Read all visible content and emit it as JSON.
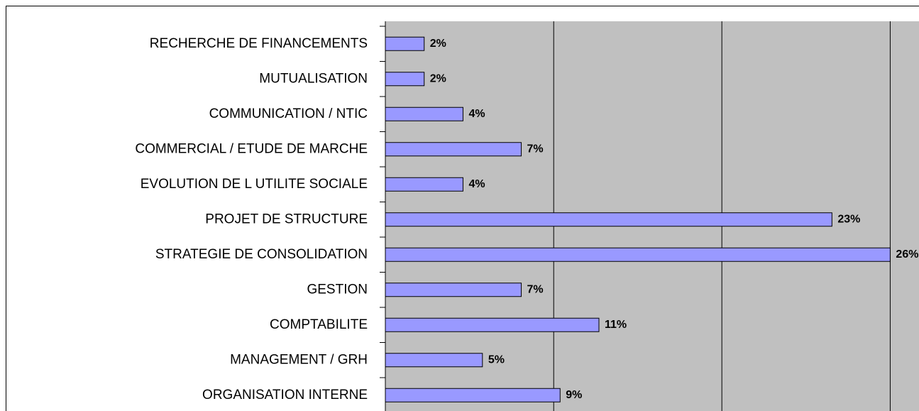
{
  "chart_data": {
    "type": "barh",
    "categories": [
      "RECHERCHE DE FINANCEMENTS",
      "MUTUALISATION",
      "COMMUNICATION / NTIC",
      "COMMERCIAL / ETUDE DE MARCHE",
      "EVOLUTION DE L UTILITE SOCIALE",
      "PROJET DE STRUCTURE",
      "STRATEGIE DE CONSOLIDATION",
      "GESTION ",
      "COMPTABILITE",
      "MANAGEMENT / GRH",
      "ORGANISATION INTERNE"
    ],
    "values": [
      2,
      2,
      4,
      7,
      4,
      23,
      26,
      7,
      11,
      5,
      9
    ],
    "value_labels": [
      "2%",
      "2%",
      "4%",
      "7%",
      "4%",
      "23%",
      "26%",
      "7%",
      "11%",
      "5%",
      "9%"
    ],
    "color": "#9999ff",
    "xlim": [
      0,
      27.3
    ],
    "xticks": [
      0,
      8.67,
      17.33,
      26
    ],
    "grid": true
  }
}
